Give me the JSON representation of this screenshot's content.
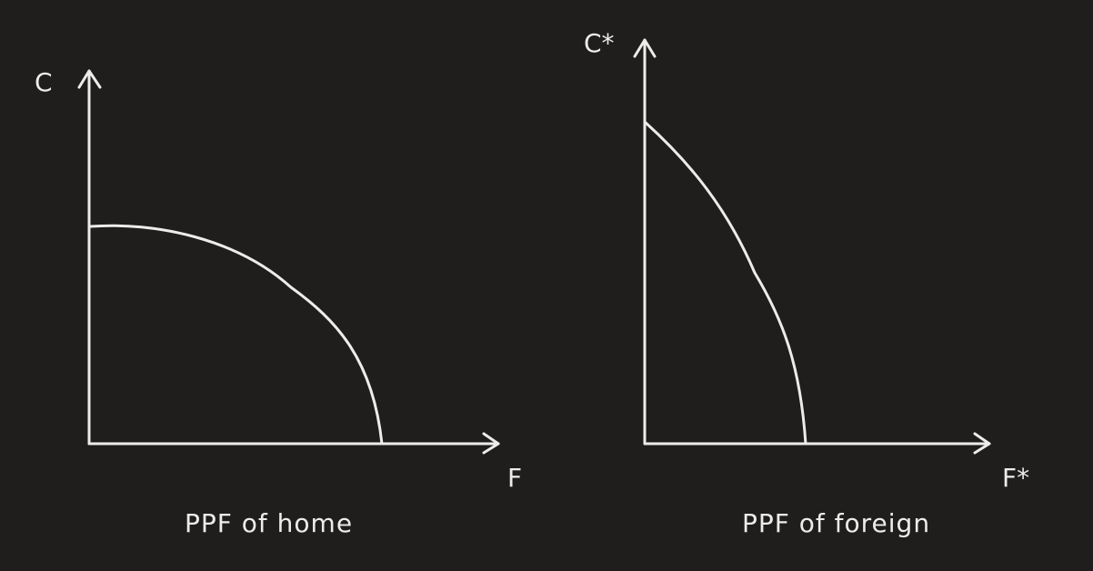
{
  "colors": {
    "background": "#1f1e1d",
    "stroke": "#ececec"
  },
  "home": {
    "y_axis_label": "C",
    "x_axis_label": "F",
    "caption": "PPF of home"
  },
  "foreign": {
    "y_axis_label": "C*",
    "x_axis_label": "F*",
    "caption": "PPF of foreign"
  }
}
